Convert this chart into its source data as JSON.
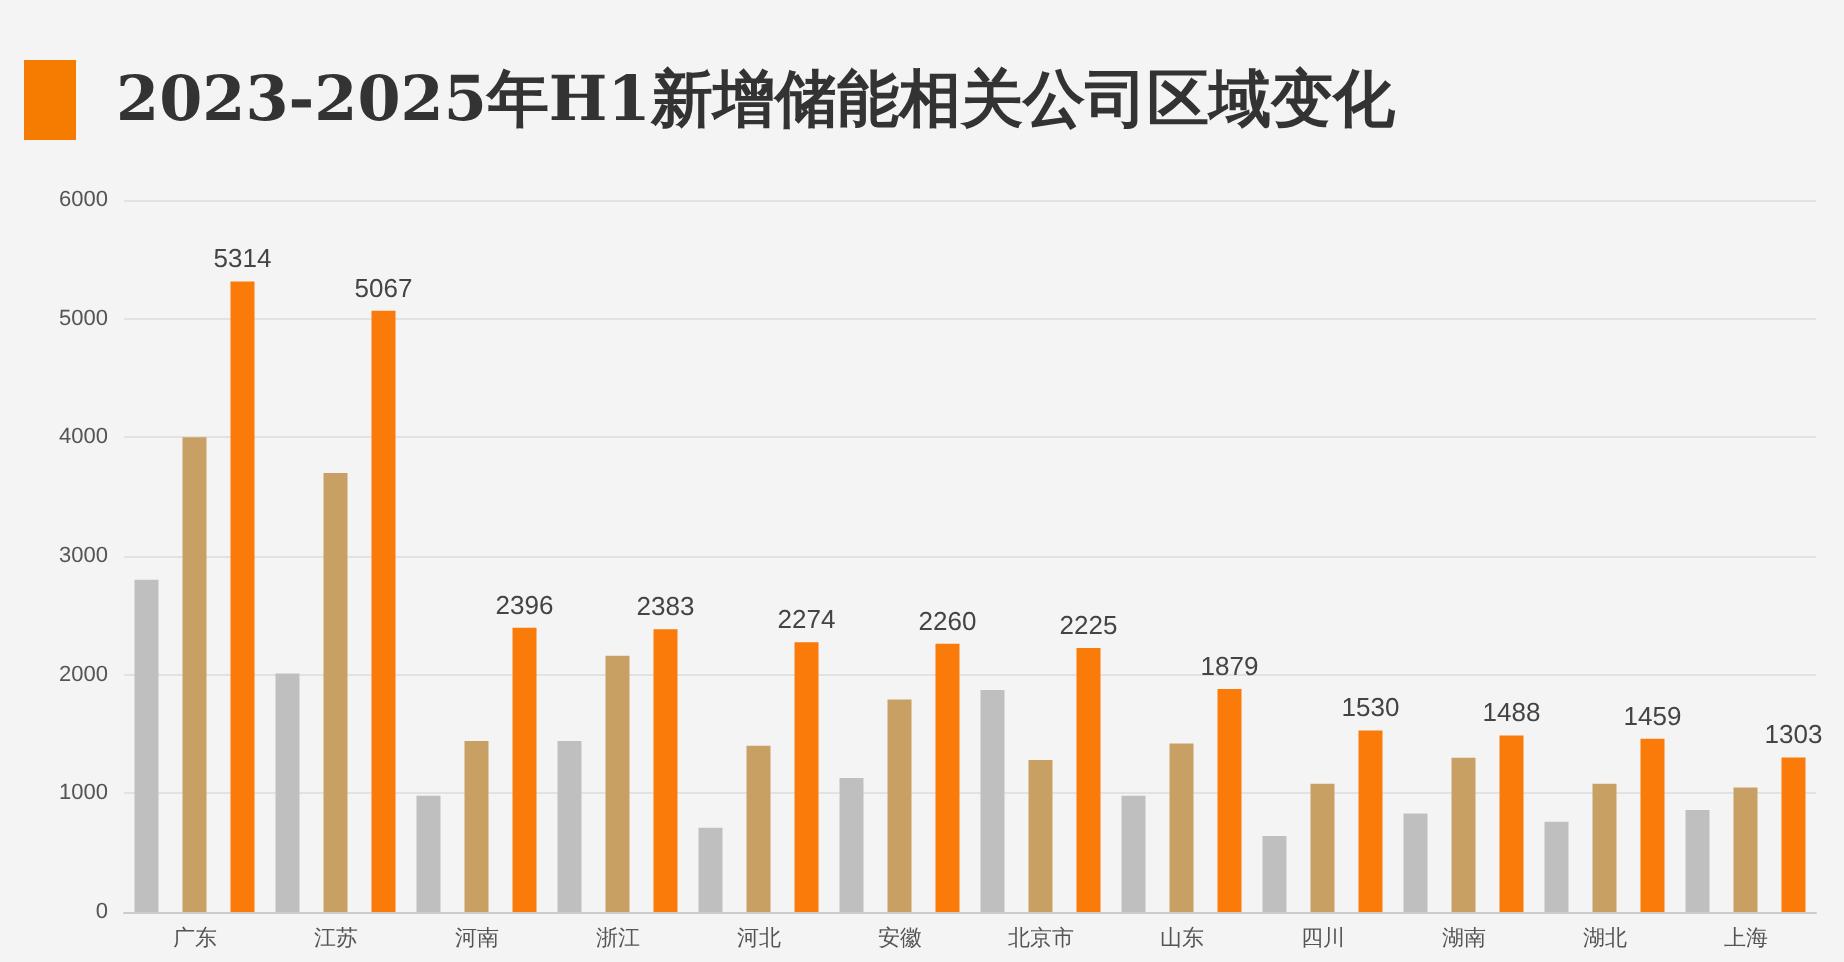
{
  "chart_data": {
    "type": "bar",
    "title": "2023-2025年H1新增储能相关公司区域变化",
    "categories": [
      "广东",
      "江苏",
      "河南",
      "浙江",
      "河北",
      "安徽",
      "北京市",
      "山东",
      "四川",
      "湖南",
      "湖北",
      "上海"
    ],
    "series": [
      {
        "color": "#bfbfbf",
        "values": [
          2800,
          2010,
          980,
          1440,
          710,
          1130,
          1870,
          980,
          640,
          830,
          760,
          860
        ]
      },
      {
        "color": "#c9a064",
        "values": [
          4000,
          3700,
          1440,
          2160,
          1400,
          1790,
          1280,
          1420,
          1080,
          1300,
          1080,
          1050
        ]
      },
      {
        "color": "#fa7a0a",
        "values": [
          5314,
          5067,
          2396,
          2383,
          2274,
          2260,
          2225,
          1879,
          1530,
          1488,
          1459,
          1303
        ],
        "value_labels": [
          "5314",
          "5067",
          "2396",
          "2383",
          "2274",
          "2260",
          "2225",
          "1879",
          "1530",
          "1488",
          "1459",
          "1303"
        ]
      }
    ],
    "ylim": [
      0,
      6000
    ],
    "yticks": [
      0,
      1000,
      2000,
      3000,
      4000,
      5000,
      6000
    ],
    "grid": "y"
  }
}
